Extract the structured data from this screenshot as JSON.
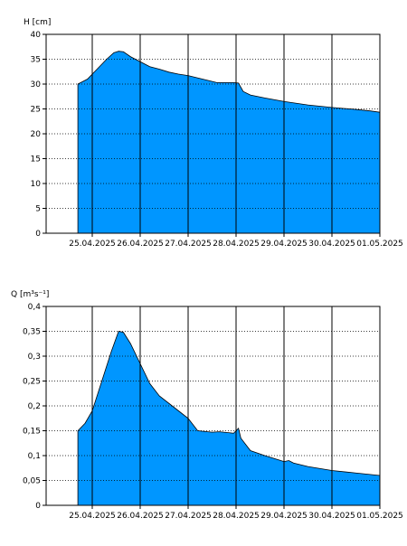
{
  "chart_data": [
    {
      "type": "area",
      "ylabel": "H [cm]",
      "ylim": [
        0,
        40
      ],
      "yticks": [
        "0",
        "5",
        "10",
        "15",
        "20",
        "25",
        "30",
        "35",
        "40"
      ],
      "xlim": [
        0,
        7.15
      ],
      "date_ticks": [
        "25.04.2025",
        "26.04.2025",
        "27.04.2025",
        "28.04.2025",
        "29.04.2025",
        "30.04.2025",
        "01.05.2025"
      ],
      "grid": true,
      "fill_color": "#0096ff",
      "x": [
        -0.3,
        -0.1,
        0.1,
        0.3,
        0.45,
        0.55,
        0.65,
        0.8,
        1.0,
        1.2,
        1.4,
        1.6,
        1.8,
        2.0,
        2.3,
        2.6,
        2.95,
        3.05,
        3.15,
        3.3,
        3.6,
        4.0,
        4.5,
        5.0,
        5.5,
        5.8,
        6.1,
        6.4,
        6.6
      ],
      "values": [
        30.0,
        31.0,
        33.0,
        35.0,
        36.3,
        36.6,
        36.5,
        35.5,
        34.5,
        33.5,
        33.0,
        32.4,
        32.0,
        31.7,
        31.0,
        30.3,
        30.3,
        30.2,
        28.5,
        27.8,
        27.2,
        26.5,
        25.8,
        25.3,
        24.9,
        24.6,
        24.2,
        24.1,
        24.1
      ]
    },
    {
      "type": "area",
      "ylabel": "Q [m³s⁻¹]",
      "ylim": [
        0,
        0.4
      ],
      "yticks": [
        "0",
        "0,05",
        "0,1",
        "0,15",
        "0,2",
        "0,25",
        "0,3",
        "0,35",
        "0,4"
      ],
      "xlim": [
        0,
        7.15
      ],
      "date_ticks": [
        "25.04.2025",
        "26.04.2025",
        "27.04.2025",
        "28.04.2025",
        "29.04.2025",
        "30.04.2025",
        "01.05.2025"
      ],
      "grid": true,
      "fill_color": "#0096ff",
      "x": [
        -0.3,
        -0.15,
        0.0,
        0.2,
        0.4,
        0.55,
        0.65,
        0.8,
        1.0,
        1.2,
        1.4,
        1.6,
        1.8,
        2.0,
        2.2,
        2.5,
        2.65,
        2.95,
        3.05,
        3.1,
        3.3,
        3.6,
        4.0,
        4.1,
        4.2,
        4.5,
        5.0,
        5.5,
        6.0,
        6.3,
        6.6
      ],
      "values": [
        0.15,
        0.165,
        0.19,
        0.25,
        0.31,
        0.35,
        0.348,
        0.325,
        0.285,
        0.245,
        0.22,
        0.205,
        0.19,
        0.175,
        0.15,
        0.147,
        0.148,
        0.145,
        0.155,
        0.135,
        0.11,
        0.1,
        0.088,
        0.09,
        0.085,
        0.078,
        0.07,
        0.065,
        0.06,
        0.055,
        0.055
      ]
    }
  ]
}
